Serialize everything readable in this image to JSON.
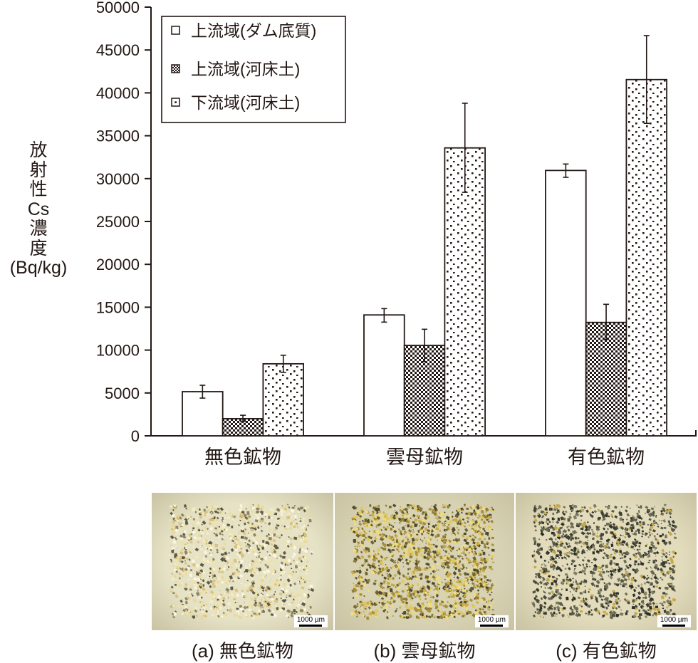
{
  "chart_data": {
    "type": "bar",
    "title": "",
    "xlabel": "",
    "ylabel": "放射性Cs濃度(Bq/kg)",
    "ylabel_lines": [
      "放",
      "射",
      "性",
      "Cs",
      "濃",
      "度",
      "(Bq/kg)"
    ],
    "ylim": [
      0,
      50000
    ],
    "yticks": [
      0,
      5000,
      10000,
      15000,
      20000,
      25000,
      30000,
      35000,
      40000,
      45000,
      50000
    ],
    "grid": false,
    "legend_position": "upper-left",
    "categories": [
      "無色鉱物",
      "雲母鉱物",
      "有色鉱物"
    ],
    "series": [
      {
        "name": "上流域(ダム底質)",
        "pattern": "white",
        "values": [
          5150,
          14100,
          30950
        ],
        "error_low": [
          4400,
          13260,
          30150
        ],
        "error_high": [
          5900,
          14840,
          31700
        ]
      },
      {
        "name": "上流域(河床土)",
        "pattern": "checker",
        "values": [
          2000,
          10550,
          13230
        ],
        "error_low": [
          1650,
          8650,
          11240
        ],
        "error_high": [
          2400,
          12430,
          15340
        ]
      },
      {
        "name": "下流域(河床土)",
        "pattern": "dots",
        "values": [
          8400,
          33580,
          41550
        ],
        "error_low": [
          7400,
          28400,
          36440
        ],
        "error_high": [
          9400,
          38790,
          46680
        ]
      }
    ]
  },
  "photos": [
    {
      "caption": "(a) 無色鉱物",
      "scale_label": "1000 µm",
      "tone": "light"
    },
    {
      "caption": "(b) 雲母鉱物",
      "scale_label": "1000 µm",
      "tone": "gold"
    },
    {
      "caption": "(c) 有色鉱物",
      "scale_label": "1000 µm",
      "tone": "dark"
    }
  ],
  "colors": {
    "ink": "#231815",
    "photo_bg_a": "#e6e2c6",
    "photo_bg_b": "#d8d3b4",
    "photo_bg_c": "#e2dcbd"
  }
}
